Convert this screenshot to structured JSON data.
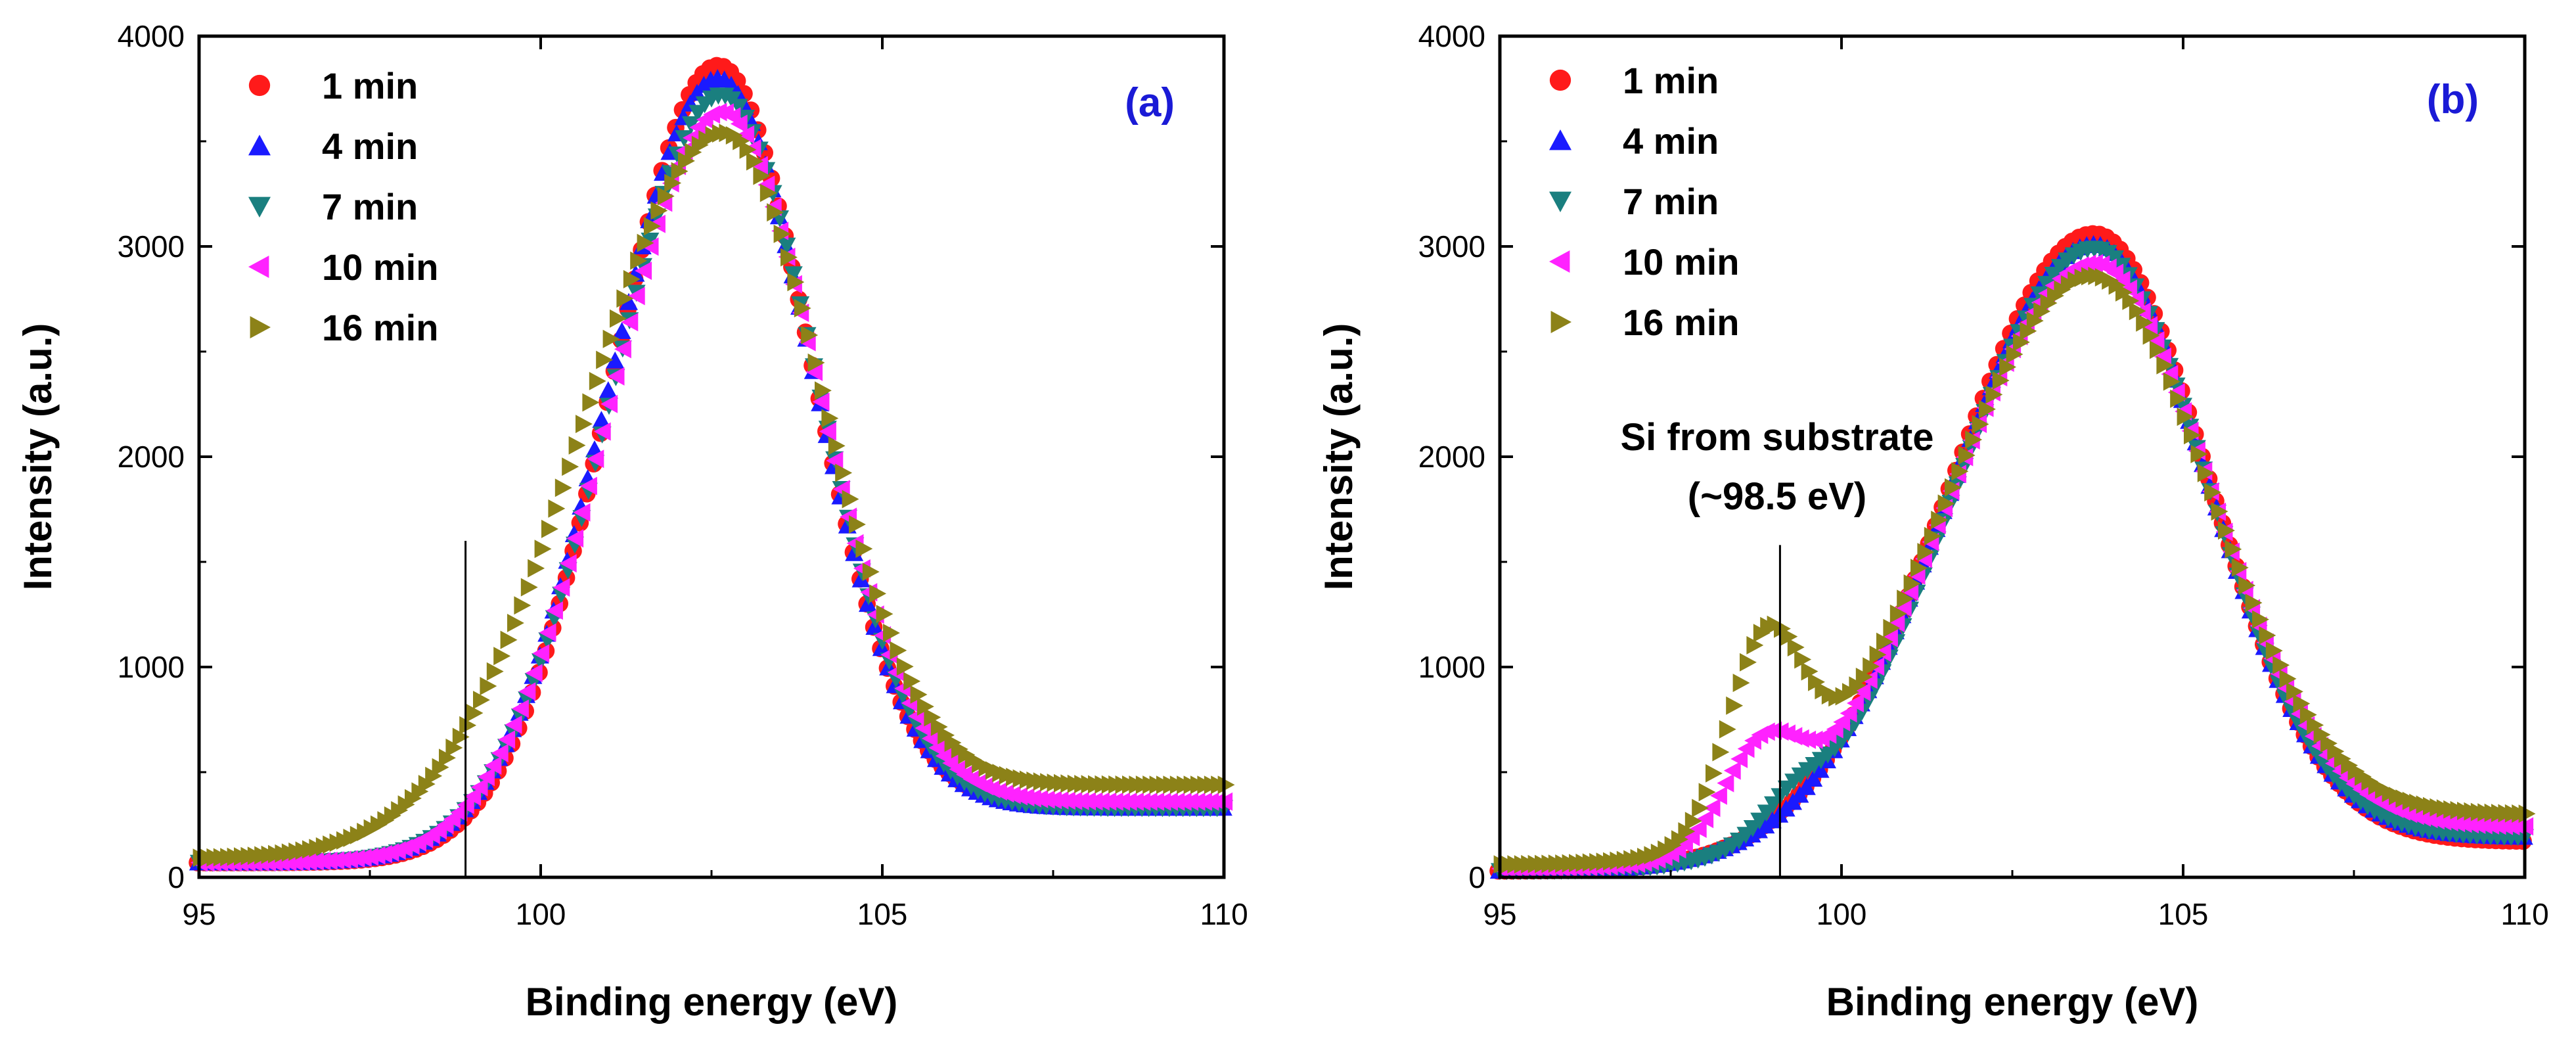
{
  "chart_data": [
    {
      "type": "scatter",
      "panel_label": "(a)",
      "xlabel": "Binding energy (eV)",
      "ylabel": "Intensity (a.u.)",
      "xlim": [
        95,
        110
      ],
      "ylim": [
        0,
        4000
      ],
      "x_ticks": [
        95,
        100,
        105,
        110
      ],
      "y_ticks": [
        0,
        1000,
        2000,
        3000,
        4000
      ],
      "legend_position": "top-left",
      "marker_line_x": 98.9,
      "marker_line_ymax": 1600,
      "series": [
        {
          "name": "1 min",
          "marker": "circle",
          "color": "#ff1a1a",
          "profile": {
            "peak_x": 102.6,
            "peak_y": 3860,
            "width_left": 1.55,
            "width_right": 1.35,
            "baseline_left": 70,
            "baseline_right": 340,
            "shoulder_x": 0,
            "shoulder_y": 0,
            "shoulder_w": 1
          }
        },
        {
          "name": "4 min",
          "marker": "triangle-up",
          "color": "#1a1aff",
          "profile": {
            "peak_x": 102.6,
            "peak_y": 3800,
            "width_left": 1.6,
            "width_right": 1.37,
            "baseline_left": 70,
            "baseline_right": 330,
            "shoulder_x": 0,
            "shoulder_y": 0,
            "shoulder_w": 1
          }
        },
        {
          "name": "7 min",
          "marker": "triangle-down",
          "color": "#1a7f7f",
          "profile": {
            "peak_x": 102.65,
            "peak_y": 3720,
            "width_left": 1.62,
            "width_right": 1.38,
            "baseline_left": 70,
            "baseline_right": 330,
            "shoulder_x": 0,
            "shoulder_y": 0,
            "shoulder_w": 1
          }
        },
        {
          "name": "10 min",
          "marker": "triangle-left",
          "color": "#ff22ff",
          "profile": {
            "peak_x": 102.65,
            "peak_y": 3640,
            "width_left": 1.65,
            "width_right": 1.4,
            "baseline_left": 70,
            "baseline_right": 360,
            "shoulder_x": 0,
            "shoulder_y": 0,
            "shoulder_w": 1
          }
        },
        {
          "name": "16 min",
          "marker": "triangle-right",
          "color": "#8c8218",
          "profile": {
            "peak_x": 102.7,
            "peak_y": 3540,
            "width_left": 2.05,
            "width_right": 1.42,
            "baseline_left": 90,
            "baseline_right": 440,
            "shoulder_x": 0,
            "shoulder_y": 0,
            "shoulder_w": 1
          }
        }
      ]
    },
    {
      "type": "scatter",
      "panel_label": "(b)",
      "xlabel": "Binding energy (eV)",
      "ylabel": "Intensity (a.u.)",
      "xlim": [
        95,
        110
      ],
      "ylim": [
        0,
        4000
      ],
      "x_ticks": [
        95,
        100,
        105,
        110
      ],
      "y_ticks": [
        0,
        1000,
        2000,
        3000,
        4000
      ],
      "legend_position": "top-left",
      "marker_line_x": 99.1,
      "marker_line_ymax": 1580,
      "annotation": [
        "Si from substrate",
        "(~98.5 eV)"
      ],
      "series": [
        {
          "name": "1 min",
          "marker": "circle",
          "color": "#ff1a1a",
          "profile": {
            "peak_x": 103.7,
            "peak_y": 3060,
            "width_left": 2.1,
            "width_right": 1.65,
            "baseline_left": 30,
            "baseline_right": 170,
            "shoulder_x": 0,
            "shoulder_y": 0,
            "shoulder_w": 1
          }
        },
        {
          "name": "4 min",
          "marker": "triangle-up",
          "color": "#1a1aff",
          "profile": {
            "peak_x": 103.7,
            "peak_y": 3010,
            "width_left": 2.1,
            "width_right": 1.65,
            "baseline_left": 30,
            "baseline_right": 190,
            "shoulder_x": 0,
            "shoulder_y": 0,
            "shoulder_w": 1
          }
        },
        {
          "name": "7 min",
          "marker": "triangle-down",
          "color": "#1a7f7f",
          "profile": {
            "peak_x": 103.7,
            "peak_y": 2990,
            "width_left": 2.05,
            "width_right": 1.65,
            "baseline_left": 30,
            "baseline_right": 190,
            "shoulder_x": 99.3,
            "shoulder_y": 130,
            "shoulder_w": 0.45
          }
        },
        {
          "name": "10 min",
          "marker": "triangle-left",
          "color": "#ff22ff",
          "profile": {
            "peak_x": 103.7,
            "peak_y": 2920,
            "width_left": 2.15,
            "width_right": 1.68,
            "baseline_left": 40,
            "baseline_right": 240,
            "shoulder_x": 98.8,
            "shoulder_y": 420,
            "shoulder_w": 0.55
          }
        },
        {
          "name": "16 min",
          "marker": "triangle-right",
          "color": "#8c8218",
          "profile": {
            "peak_x": 103.7,
            "peak_y": 2860,
            "width_left": 2.2,
            "width_right": 1.7,
            "baseline_left": 60,
            "baseline_right": 300,
            "shoulder_x": 98.9,
            "shoulder_y": 870,
            "shoulder_w": 0.55
          }
        }
      ]
    }
  ]
}
